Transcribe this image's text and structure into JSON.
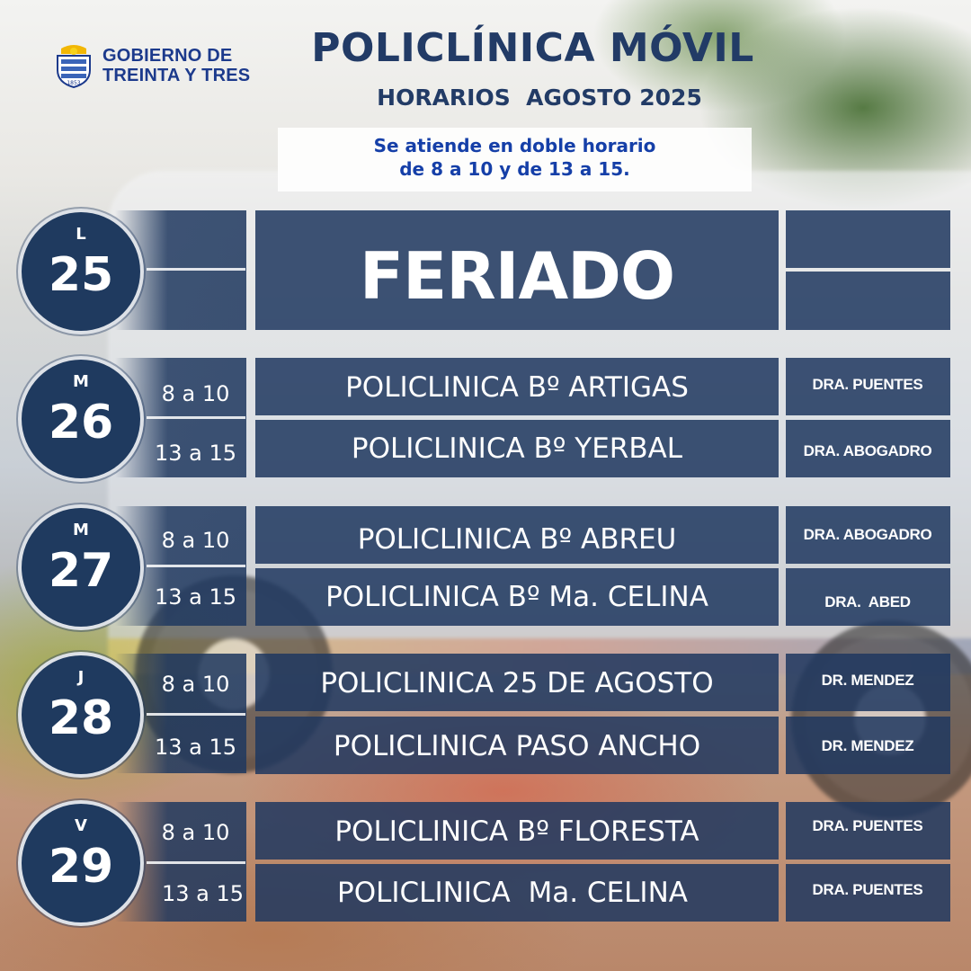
{
  "org": {
    "line1": "GOBIERNO DE",
    "line2": "TREINTA Y TRES"
  },
  "title": "POLICLÍNICA MÓVIL",
  "subtitle": "HORARIOS  AGOSTO 2025",
  "note": {
    "line1": "Se atiende en doble horario",
    "line2": "de 8 a 10 y de 13 a 15."
  },
  "holiday": {
    "letter": "L",
    "day": "25",
    "label": "FERIADO"
  },
  "days": [
    {
      "letter": "M",
      "day": "26",
      "rows": [
        {
          "time": "8 a 10",
          "place": "POLICLINICA Bº ARTIGAS",
          "doctor": "DRA. PUENTES"
        },
        {
          "time": "13 a 15",
          "place": "POLICLINICA Bº YERBAL",
          "doctor": "DRA. ABOGADRO"
        }
      ]
    },
    {
      "letter": "M",
      "day": "27",
      "rows": [
        {
          "time": "8 a 10",
          "place": "POLICLINICA Bº ABREU",
          "doctor": "DRA. ABOGADRO"
        },
        {
          "time": "13 a 15",
          "place": "POLICLINICA Bº Ma. CELINA",
          "doctor": "DRA.  ABED"
        }
      ]
    },
    {
      "letter": "J",
      "day": "28",
      "rows": [
        {
          "time": "8 a 10",
          "place": "POLICLINICA 25 DE AGOSTO",
          "doctor": "DR. MENDEZ"
        },
        {
          "time": "13 a 15",
          "place": "POLICLINICA PASO ANCHO",
          "doctor": "DR. MENDEZ"
        }
      ]
    },
    {
      "letter": "V",
      "day": "29",
      "rows": [
        {
          "time": "8 a 10",
          "place": "POLICLINICA Bº FLORESTA",
          "doctor": "DRA. PUENTES"
        },
        {
          "time": "13 a 15",
          "place": "POLICLINICA  Ma. CELINA",
          "doctor": "DRA. PUENTES"
        }
      ]
    }
  ]
}
